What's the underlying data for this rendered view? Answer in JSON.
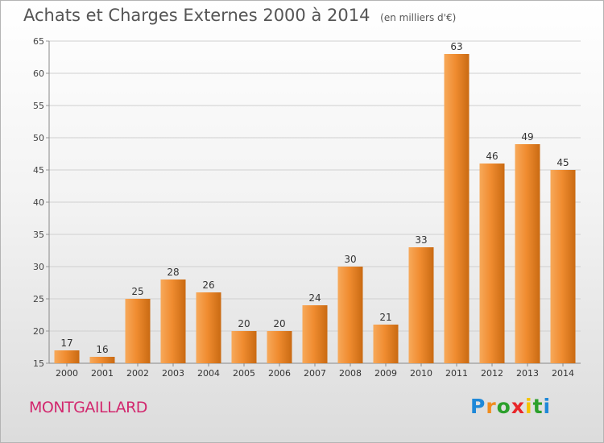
{
  "header": {
    "title": "Achats et Charges Externes 2000 à 2014",
    "subtitle": "(en milliers d'€)"
  },
  "footer": {
    "place": "MONTGAILLARD",
    "logo_text": "Proxiti"
  },
  "colors": {
    "bar": "#f08c30",
    "bar_light": "#f7a95a",
    "bar_dark": "#c96a12",
    "grid": "#d0d0d0",
    "place_text": "#d2286e"
  },
  "chart_data": {
    "type": "bar",
    "title": "Achats et Charges Externes 2000 à 2014",
    "subtitle": "(en milliers d'€)",
    "categories": [
      "2000",
      "2001",
      "2002",
      "2003",
      "2004",
      "2005",
      "2006",
      "2007",
      "2008",
      "2009",
      "2010",
      "2011",
      "2012",
      "2013",
      "2014"
    ],
    "values": [
      17,
      16,
      25,
      28,
      26,
      20,
      20,
      24,
      30,
      21,
      33,
      63,
      46,
      49,
      45
    ],
    "ylim": [
      15,
      65
    ],
    "yticks": [
      15,
      20,
      25,
      30,
      35,
      40,
      45,
      50,
      55,
      60,
      65
    ],
    "xlabel": "",
    "ylabel": "",
    "grid": true,
    "data_labels": true
  }
}
